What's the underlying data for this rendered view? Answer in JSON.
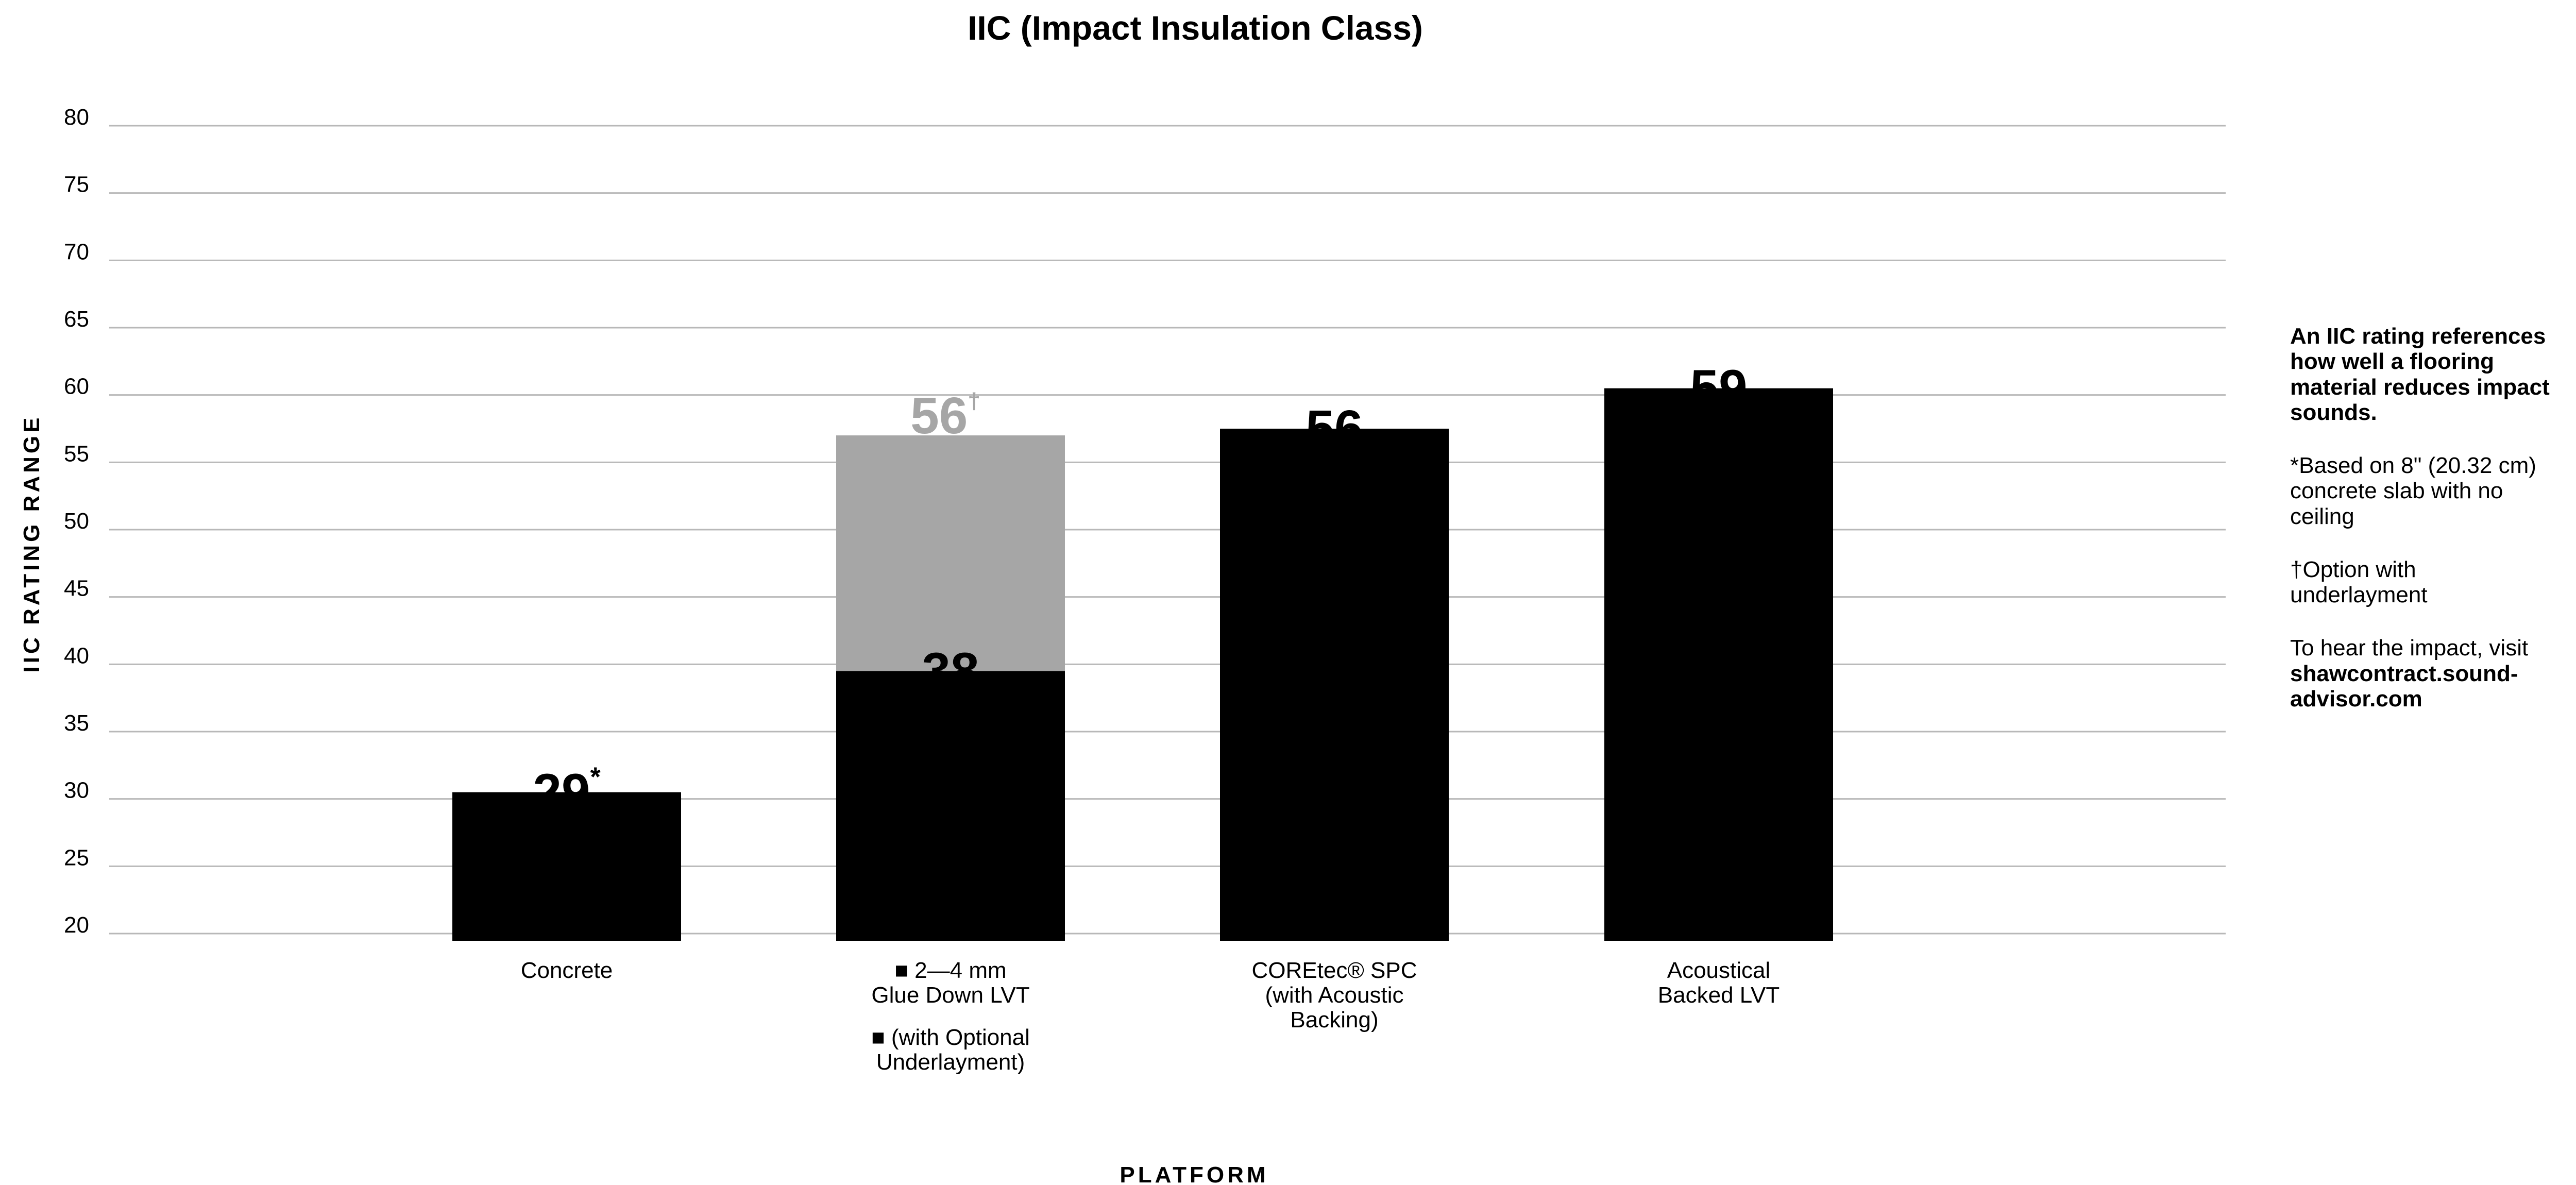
{
  "colors": {
    "primary_bar": "#000000",
    "optional_bar": "#a6a6a6",
    "grid": "#b8b8b8",
    "text": "#000000"
  },
  "chart_data": {
    "type": "bar",
    "title": "IIC (Impact Insulation Class)",
    "xlabel": "PLATFORM",
    "ylabel": "IIC RATING RANGE",
    "ylim": [
      20,
      80
    ],
    "yticks": [
      20,
      25,
      30,
      35,
      40,
      45,
      50,
      55,
      60,
      65,
      70,
      75,
      80
    ],
    "grid": true,
    "categories": [
      {
        "lines": [
          "Concrete"
        ],
        "value": 29,
        "label": "29",
        "marker": "*"
      },
      {
        "lines": [
          "■ 2—4 mm",
          "Glue Down LVT"
        ],
        "value": 38,
        "label": "38",
        "marker": "",
        "optional": {
          "lines": [
            "■ (with Optional",
            "Underlayment)"
          ],
          "value": 56,
          "label": "56",
          "marker": "†"
        }
      },
      {
        "lines": [
          "COREtec® SPC",
          "(with Acoustic",
          "Backing)"
        ],
        "value": 56,
        "label": "56",
        "marker": ""
      },
      {
        "lines": [
          "Acoustical",
          "Backed LVT"
        ],
        "value": 59,
        "label": "59",
        "marker": ""
      }
    ]
  },
  "notes": {
    "lead": "An IIC rating references how well a flooring material reduces impact sounds.",
    "footnote_star": "*Based on 8\" (20.32 cm)\n  concrete slab with no\n  ceiling",
    "footnote_dagger": "†Option with\n underlayment",
    "visit_text": "To hear the impact, visit",
    "visit_url": "shawcontract.sound-advisor.com"
  }
}
